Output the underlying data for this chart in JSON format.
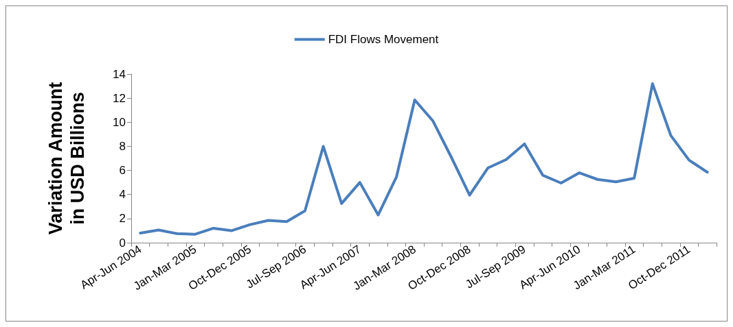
{
  "chart_data": {
    "type": "line",
    "ylabel": "Variation Amount in USD Billions",
    "categories": [
      "Apr-Jun 2004",
      null,
      null,
      "Jan-Mar 2005",
      null,
      null,
      "Oct-Dec 2005",
      null,
      null,
      "Jul-Sep 2006",
      null,
      null,
      "Apr-Jun 2007",
      null,
      null,
      "Jan-Mar 2008",
      null,
      null,
      "Oct-Dec 2008",
      null,
      null,
      "Jul-Sep 2009",
      null,
      null,
      "Apr-Jun 2010",
      null,
      null,
      "Jan-Mar 2011",
      null,
      null,
      "Oct-Dec 2011",
      null
    ],
    "series": [
      {
        "name": "FDI Flows Movement",
        "color": "#4a7ebb",
        "values": [
          0.8,
          1.05,
          0.75,
          0.7,
          1.2,
          1.0,
          1.5,
          1.85,
          1.75,
          2.65,
          8.0,
          3.25,
          5.0,
          2.3,
          5.45,
          11.85,
          10.1,
          7.1,
          3.95,
          6.2,
          6.9,
          8.2,
          5.6,
          4.95,
          5.8,
          5.25,
          5.05,
          5.35,
          13.2,
          8.9,
          6.85,
          5.85
        ]
      }
    ],
    "ylim": [
      0,
      14
    ],
    "yticks": [
      0,
      2,
      4,
      6,
      8,
      10,
      12,
      14
    ],
    "grid": false,
    "legend": "top",
    "marker": "none",
    "line_style": "solid"
  }
}
